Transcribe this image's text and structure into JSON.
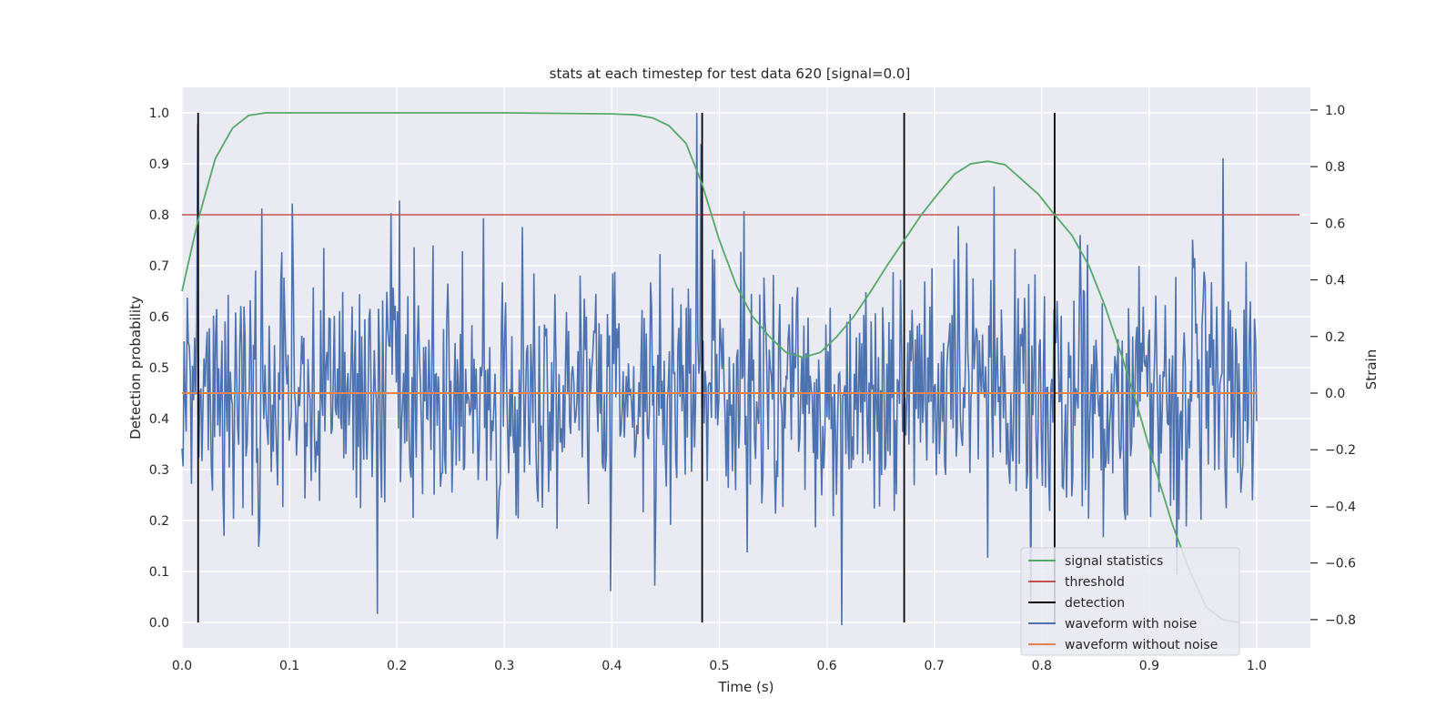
{
  "chart_data": {
    "type": "line",
    "title": "stats at each timestep for test data 620 [signal=0.0]",
    "xlabel": "Time (s)",
    "ylabel_left": "Detection probability",
    "ylabel_right": "Strain",
    "xlim": [
      0.0,
      1.05
    ],
    "ylim_left": [
      -0.05,
      1.05
    ],
    "ylim_right": [
      -0.9,
      1.08
    ],
    "x_ticks": [
      "0.0",
      "0.1",
      "0.2",
      "0.3",
      "0.4",
      "0.5",
      "0.6",
      "0.7",
      "0.8",
      "0.9",
      "1.0"
    ],
    "y_ticks_left": [
      "0.0",
      "0.1",
      "0.2",
      "0.3",
      "0.4",
      "0.5",
      "0.6",
      "0.7",
      "0.8",
      "0.9",
      "1.0"
    ],
    "y_ticks_right": [
      "−0.8",
      "−0.6",
      "−0.4",
      "−0.2",
      "0.0",
      "0.2",
      "0.4",
      "0.6",
      "0.8",
      "1.0"
    ],
    "grid": true,
    "legend_position": "lower-right",
    "colors": {
      "signal_statistics": "#55a868",
      "threshold": "#c44e52",
      "detection": "#000000",
      "waveform_with_noise": "#4c72b0",
      "waveform_without_noise": "#dd8452",
      "plot_background": "#eaeaf2",
      "grid": "#ffffff"
    },
    "signal_statistics": {
      "name": "signal statistics",
      "x": [
        0.0,
        0.015,
        0.031,
        0.047,
        0.062,
        0.078,
        0.094,
        0.109,
        0.2,
        0.3,
        0.4,
        0.422,
        0.438,
        0.453,
        0.469,
        0.484,
        0.5,
        0.516,
        0.531,
        0.547,
        0.562,
        0.578,
        0.594,
        0.609,
        0.625,
        0.641,
        0.656,
        0.672,
        0.688,
        0.703,
        0.719,
        0.734,
        0.75,
        0.766,
        0.781,
        0.797,
        0.812,
        0.828,
        0.844,
        0.859,
        0.875,
        0.891,
        0.906,
        0.922,
        0.938,
        0.953,
        0.969,
        0.984
      ],
      "y": [
        0.65,
        0.79,
        0.91,
        0.97,
        0.995,
        1.0,
        1.0,
        1.0,
        1.0,
        1.0,
        0.998,
        0.996,
        0.99,
        0.975,
        0.94,
        0.86,
        0.75,
        0.66,
        0.6,
        0.56,
        0.53,
        0.52,
        0.53,
        0.56,
        0.6,
        0.65,
        0.7,
        0.75,
        0.8,
        0.84,
        0.88,
        0.9,
        0.905,
        0.898,
        0.87,
        0.84,
        0.8,
        0.76,
        0.7,
        0.62,
        0.52,
        0.41,
        0.3,
        0.19,
        0.1,
        0.03,
        0.005,
        0.0
      ]
    },
    "threshold": {
      "name": "threshold",
      "y": 0.8,
      "x_range": [
        0.0,
        1.04
      ]
    },
    "detection": {
      "name": "detection",
      "x": [
        0.015,
        0.484,
        0.672,
        0.812
      ],
      "y_range": [
        0.0,
        1.0
      ]
    },
    "waveform_with_noise": {
      "name": "waveform with noise",
      "x_range": [
        0.0,
        1.0
      ],
      "n_points": 1024,
      "amplitude_std": 0.22,
      "y_min": -0.82,
      "y_max": 0.99,
      "peaks": [
        {
          "x": 0.015,
          "y": 0.95
        },
        {
          "x": 0.103,
          "y": 0.67
        },
        {
          "x": 0.182,
          "y": -0.78
        },
        {
          "x": 0.202,
          "y": 0.68
        },
        {
          "x": 0.399,
          "y": -0.7
        },
        {
          "x": 0.44,
          "y": -0.68
        },
        {
          "x": 0.479,
          "y": 0.99
        },
        {
          "x": 0.483,
          "y": 0.88
        },
        {
          "x": 0.614,
          "y": -0.82
        },
        {
          "x": 0.756,
          "y": 0.73
        },
        {
          "x": 0.969,
          "y": 0.83
        }
      ]
    },
    "waveform_without_noise": {
      "name": "waveform without noise",
      "x_range": [
        0.0,
        1.0
      ],
      "y": 0.0
    },
    "legend": [
      "signal statistics",
      "threshold",
      "detection",
      "waveform with noise",
      "waveform without noise"
    ]
  }
}
